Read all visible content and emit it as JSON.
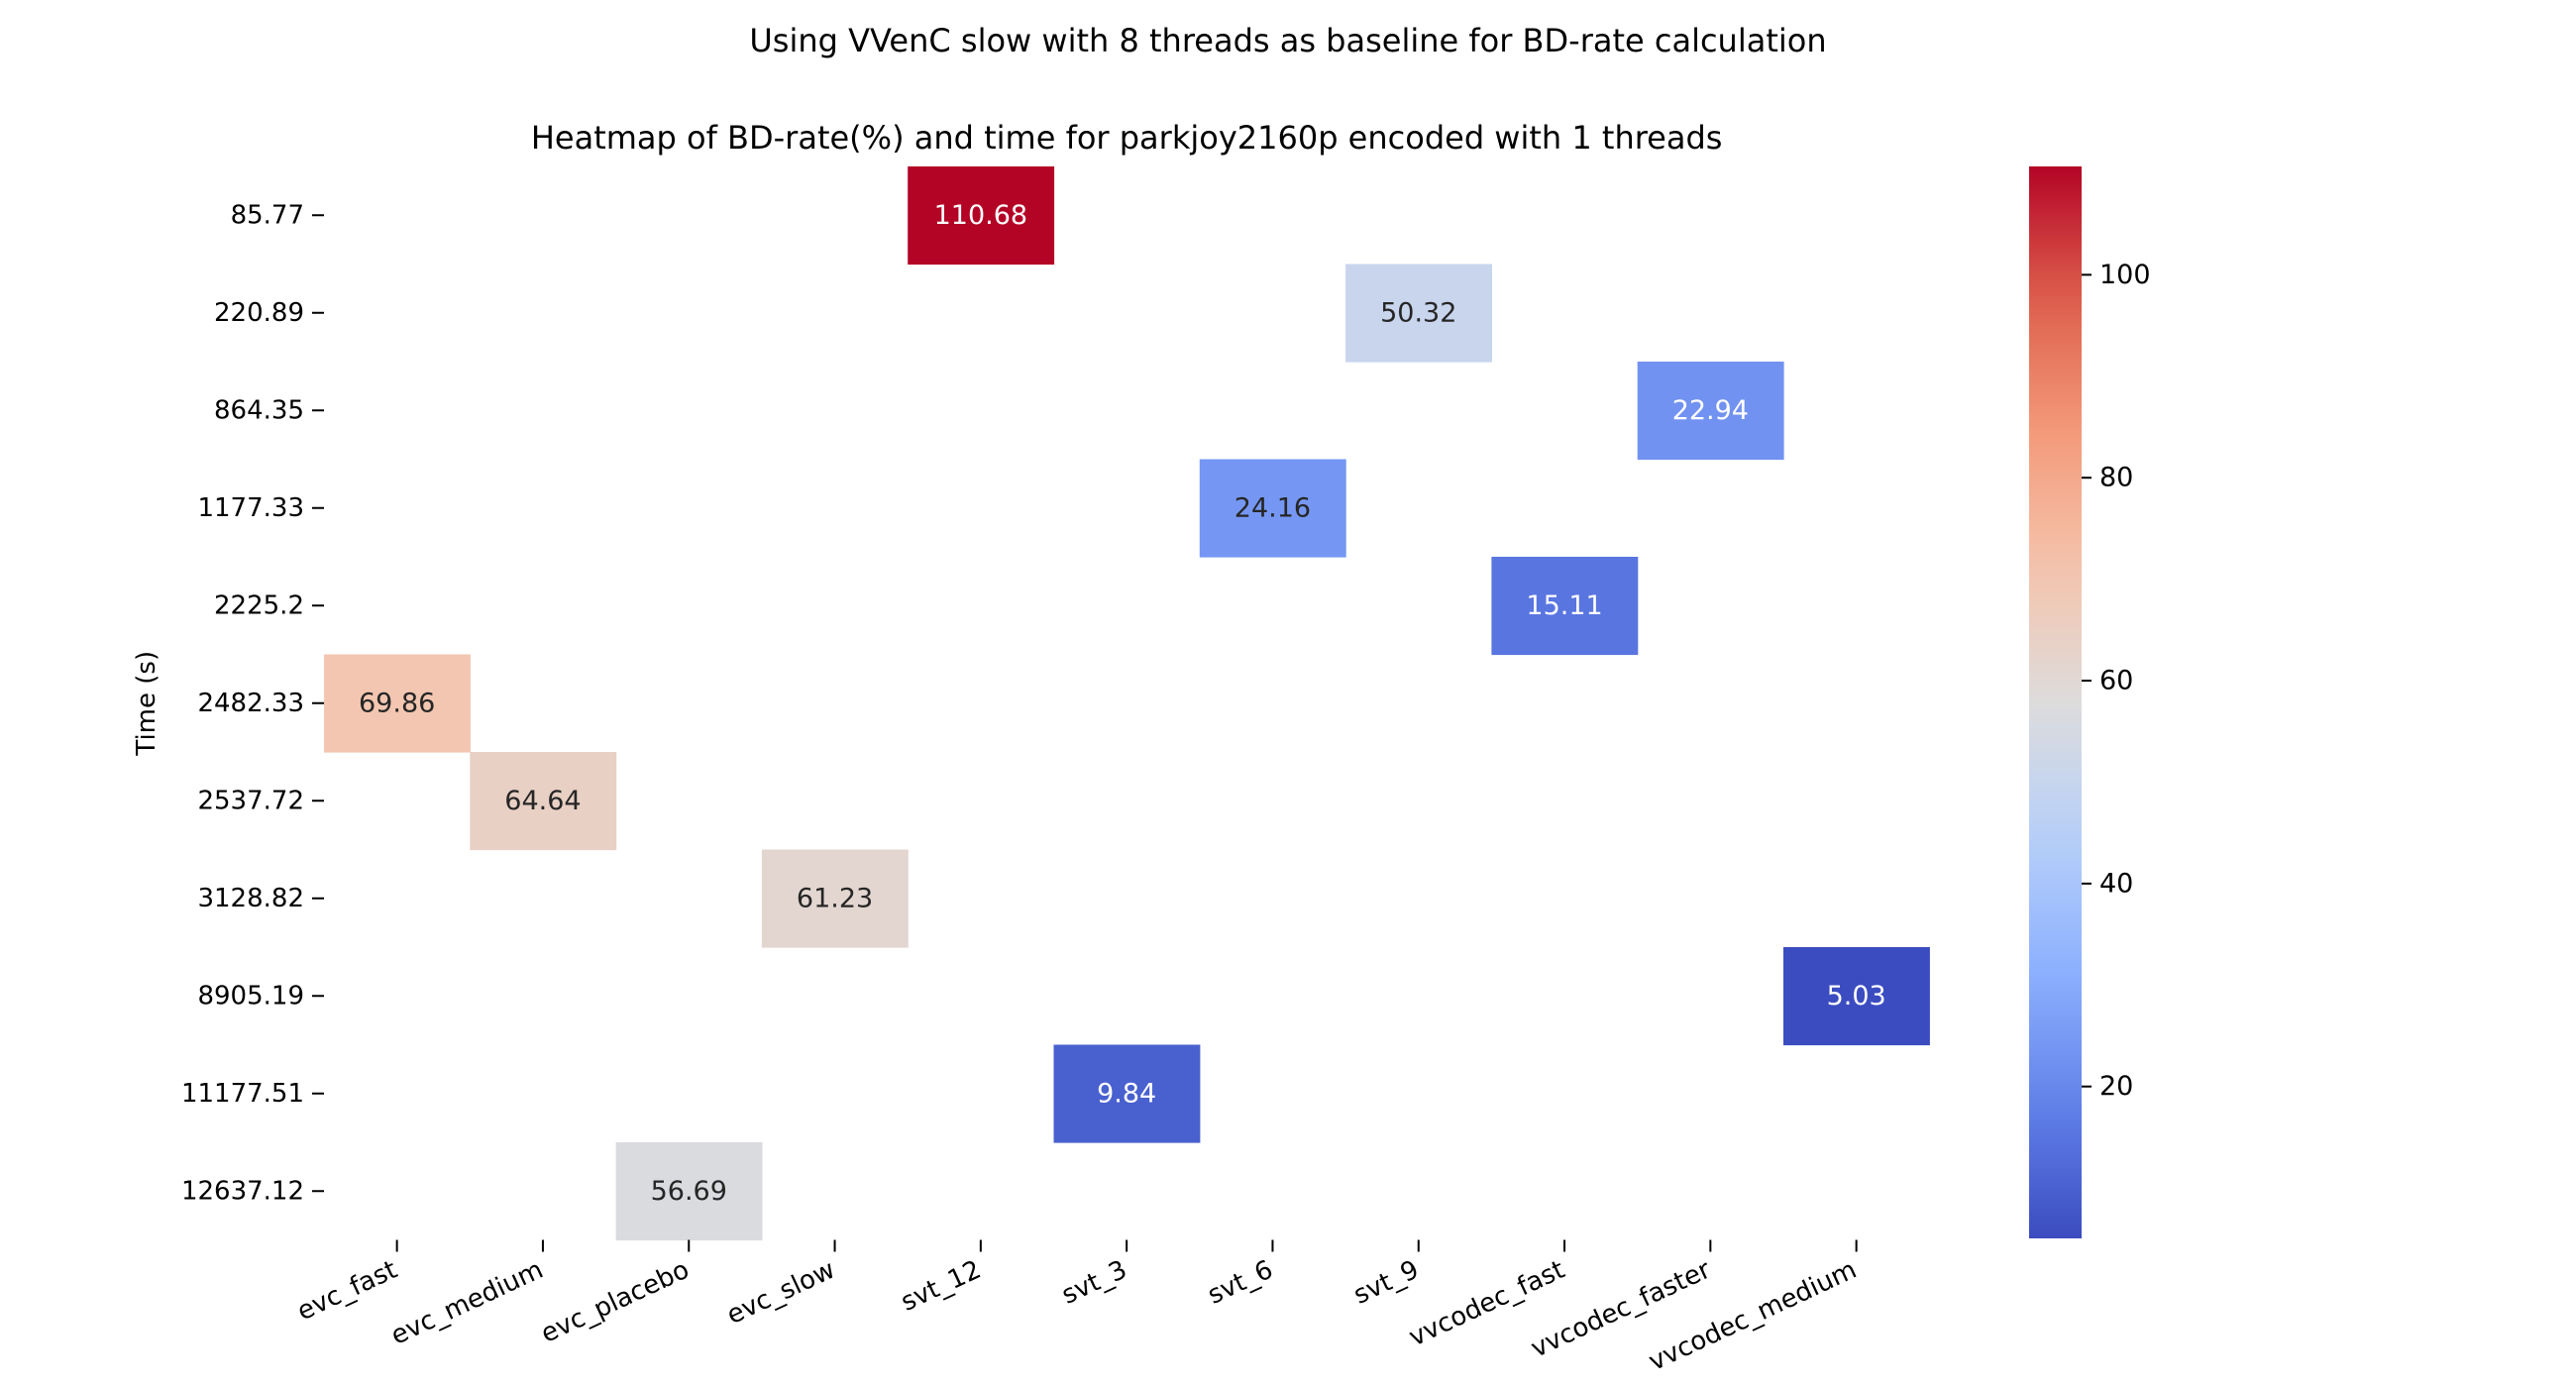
{
  "chart_data": {
    "type": "heatmap",
    "suptitle": "Using VVenC slow with 8 threads as baseline for BD-rate calculation",
    "title": "Heatmap of BD-rate(%) and time for parkjoy2160p encoded with 1 threads",
    "xlabel": "",
    "ylabel": "Time (s)",
    "x_categories": [
      "evc_fast",
      "evc_medium",
      "evc_placebo",
      "evc_slow",
      "svt_12",
      "svt_3",
      "svt_6",
      "svt_9",
      "vvcodec_fast",
      "vvcodec_faster",
      "vvcodec_medium"
    ],
    "y_categories": [
      "85.77",
      "220.89",
      "864.35",
      "1177.33",
      "2225.2",
      "2482.33",
      "2537.72",
      "3128.82",
      "8905.19",
      "11177.51",
      "12637.12"
    ],
    "cells": [
      {
        "x": "svt_12",
        "y": "85.77",
        "value": 110.68,
        "label": "110.68"
      },
      {
        "x": "svt_9",
        "y": "220.89",
        "value": 50.32,
        "label": "50.32"
      },
      {
        "x": "vvcodec_faster",
        "y": "864.35",
        "value": 22.94,
        "label": "22.94"
      },
      {
        "x": "svt_6",
        "y": "1177.33",
        "value": 24.16,
        "label": "24.16"
      },
      {
        "x": "vvcodec_fast",
        "y": "2225.2",
        "value": 15.11,
        "label": "15.11"
      },
      {
        "x": "evc_fast",
        "y": "2482.33",
        "value": 69.86,
        "label": "69.86"
      },
      {
        "x": "evc_medium",
        "y": "2537.72",
        "value": 64.64,
        "label": "64.64"
      },
      {
        "x": "evc_slow",
        "y": "3128.82",
        "value": 61.23,
        "label": "61.23"
      },
      {
        "x": "vvcodec_medium",
        "y": "8905.19",
        "value": 5.03,
        "label": "5.03"
      },
      {
        "x": "svt_3",
        "y": "11177.51",
        "value": 9.84,
        "label": "9.84"
      },
      {
        "x": "evc_placebo",
        "y": "12637.12",
        "value": 56.69,
        "label": "56.69"
      }
    ],
    "colormap": "coolwarm",
    "color_range": [
      5.03,
      110.68
    ],
    "colorbar_ticks": [
      20,
      40,
      60,
      80,
      100
    ],
    "grid": false,
    "legend": "colorbar-right"
  }
}
